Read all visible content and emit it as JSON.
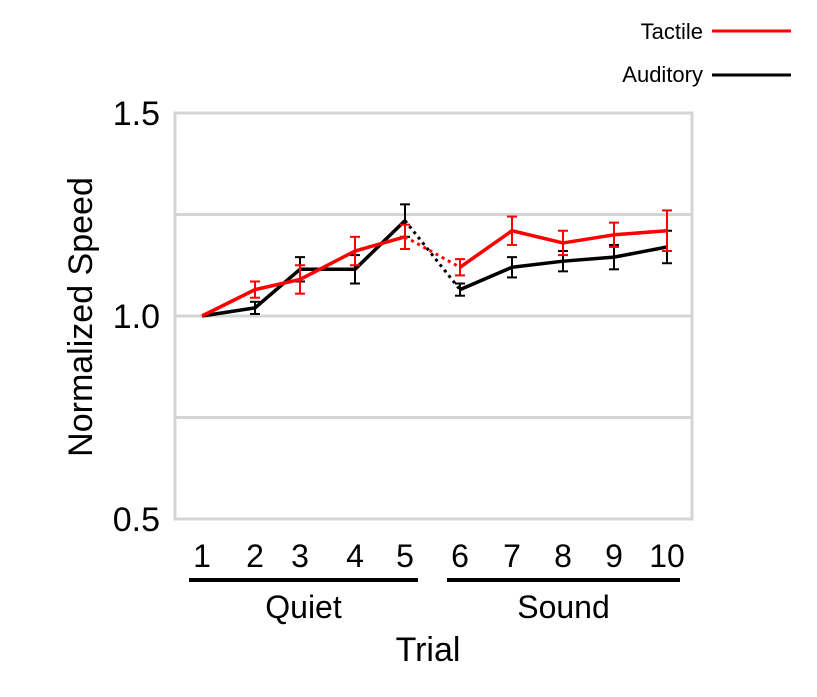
{
  "chart_data": {
    "type": "line",
    "title": "",
    "xlabel": "Trial",
    "ylabel": "Normalized Speed",
    "ylim": [
      0.5,
      1.5
    ],
    "yticks": [
      "0.5",
      "1.0",
      "1.5"
    ],
    "ygrid": [
      0.75,
      1.0,
      1.25
    ],
    "x": [
      1,
      2,
      3,
      4,
      5,
      6,
      7,
      8,
      9,
      10
    ],
    "xtick_labels": [
      "1",
      "2",
      "3",
      "4",
      "5",
      "6",
      "7",
      "8",
      "9",
      "10"
    ],
    "groups": [
      {
        "label": "Quiet",
        "from": 1,
        "to": 5
      },
      {
        "label": "Sound",
        "from": 6,
        "to": 10
      }
    ],
    "grid": true,
    "legend_position": "top-right",
    "series": [
      {
        "name": "Tactile",
        "color": "#ff0000",
        "values": [
          1.0,
          1.065,
          1.09,
          1.16,
          1.195,
          1.12,
          1.21,
          1.18,
          1.2,
          1.21
        ],
        "error": [
          0.0,
          0.02,
          0.035,
          0.035,
          0.03,
          0.02,
          0.035,
          0.03,
          0.03,
          0.05
        ]
      },
      {
        "name": "Auditory",
        "color": "#000000",
        "values": [
          1.0,
          1.02,
          1.115,
          1.115,
          1.235,
          1.065,
          1.12,
          1.135,
          1.145,
          1.17
        ],
        "error": [
          0.0,
          0.015,
          0.03,
          0.035,
          0.04,
          0.015,
          0.025,
          0.025,
          0.03,
          0.04
        ]
      }
    ]
  }
}
